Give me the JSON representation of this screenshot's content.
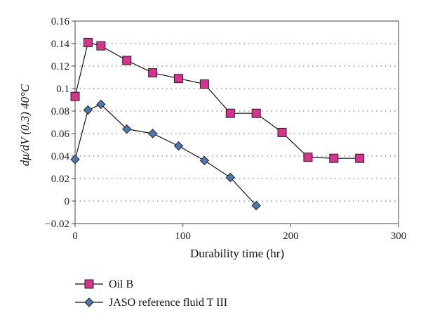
{
  "chart_data": {
    "type": "line",
    "xlabel": "Durability time (hr)",
    "ylabel": "dμ/dV (0.3) 40°C",
    "xlim": [
      0,
      300
    ],
    "ylim": [
      -0.02,
      0.16
    ],
    "xticks": [
      0,
      100,
      200,
      300
    ],
    "yticks": [
      -0.02,
      0,
      0.02,
      0.04,
      0.06,
      0.08,
      0.1,
      0.12,
      0.14,
      0.16
    ],
    "xtick_labels": [
      "0",
      "100",
      "200",
      "300"
    ],
    "ytick_labels": [
      "−0.02",
      "0",
      "0.02",
      "0.04",
      "0.06",
      "0.08",
      "0.1",
      "0.12",
      "0.14",
      "0.16"
    ],
    "grid": "horizontal dotted",
    "legend_position": "bottom-left below plot",
    "series": [
      {
        "name": "Oil B",
        "marker": "square",
        "color": "#d6338f",
        "x": [
          0,
          12,
          24,
          48,
          72,
          96,
          120,
          144,
          168,
          192,
          216,
          240,
          264
        ],
        "y": [
          0.093,
          0.141,
          0.138,
          0.125,
          0.114,
          0.109,
          0.104,
          0.078,
          0.078,
          0.061,
          0.039,
          0.038,
          0.038
        ]
      },
      {
        "name": "JASO reference fluid T III",
        "marker": "diamond",
        "color": "#4a78b0",
        "x": [
          0,
          12,
          24,
          48,
          72,
          96,
          120,
          144,
          168
        ],
        "y": [
          0.037,
          0.081,
          0.086,
          0.064,
          0.06,
          0.049,
          0.036,
          0.021,
          -0.004
        ]
      }
    ]
  }
}
